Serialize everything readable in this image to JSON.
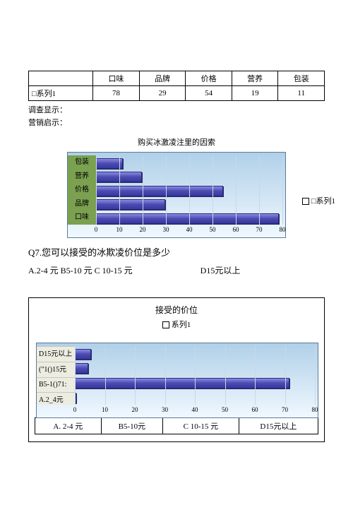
{
  "table1": {
    "headers": [
      "",
      "口味",
      "品牌",
      "价格",
      "营养",
      "包装"
    ],
    "row": [
      "□系列1",
      "78",
      "29",
      "54",
      "19",
      "11"
    ]
  },
  "notes": {
    "survey": "调查显示：",
    "marketing": "营销启示："
  },
  "chart1": {
    "title": "购买冰激凌注里的因索",
    "type": "bar-horizontal",
    "bg_top": "#b0d0e8",
    "bg_bottom": "#f0f8ff",
    "ylabel_bg": "#7aa050",
    "bar_gradient": [
      "#8a8ae0",
      "#4a4ab0",
      "#3838a0"
    ],
    "bar_border": "#2a2a80",
    "grid_color": "#c8d8e8",
    "xmax": 80,
    "xtick_step": 10,
    "categories": [
      "包装",
      "营养",
      "价格",
      "品牌",
      "口味"
    ],
    "values": [
      11,
      19,
      54,
      29,
      78
    ],
    "legend": "□系列1"
  },
  "q7": {
    "question": "Q7.您可以接受的冰欺凌价位是多少",
    "answers_left": "A.2-4 元 B5-10 元 C 10-15 元",
    "answers_right": "D15元以上"
  },
  "chart2": {
    "title": "接受的价位",
    "subtitle": "系列1",
    "type": "bar-horizontal",
    "xmax": 80,
    "xtick_step": 10,
    "categories": [
      "D15元以上",
      "(\"1()15元",
      "B5-1()71:",
      "A.2_4元"
    ],
    "values": [
      5,
      4,
      71,
      0
    ]
  },
  "table2": {
    "cells": [
      "A. 2-4 元",
      "B5-10元",
      "C 10-15 元",
      "D15元以上"
    ]
  }
}
